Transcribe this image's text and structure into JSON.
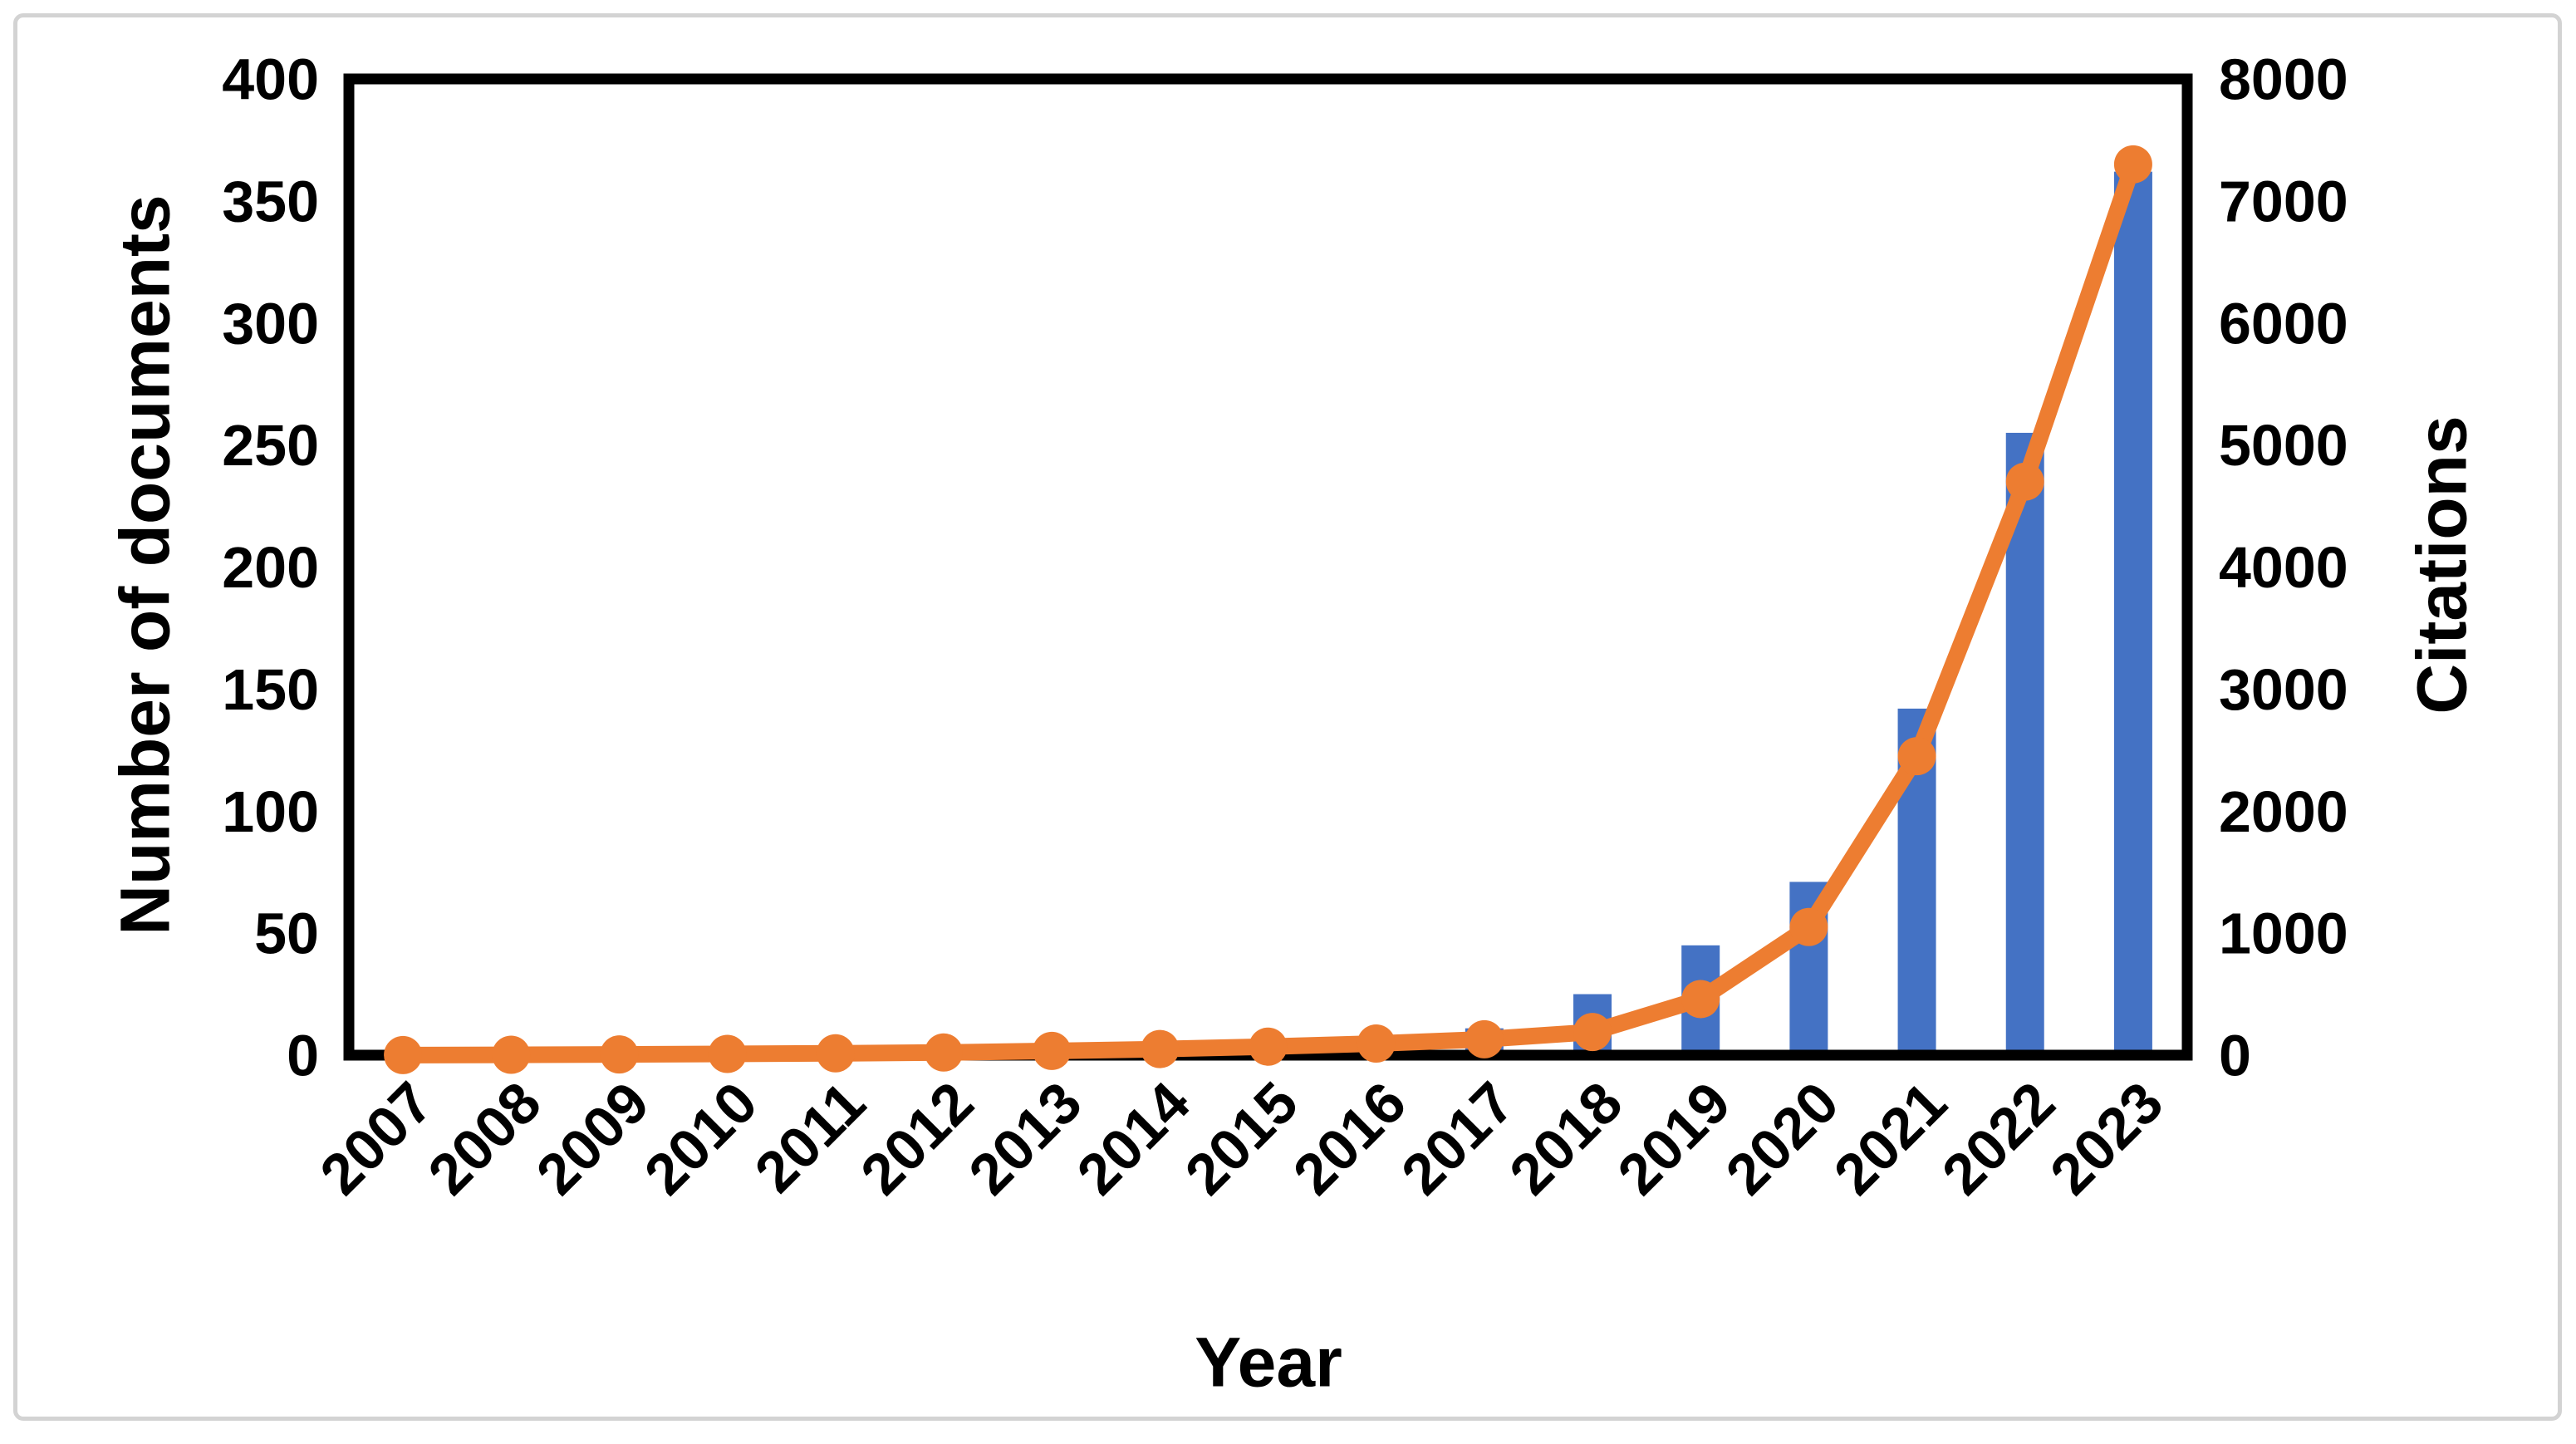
{
  "figure": {
    "background": "#ffffff",
    "frame_color": "#d3d3d3",
    "plot_border_color": "#000000"
  },
  "chart_data": {
    "type": "bar",
    "combo": true,
    "title": "",
    "xlabel": "Year",
    "ylabel_left": "Number of documents",
    "ylabel_right": "Citations",
    "categories": [
      "2007",
      "2008",
      "2009",
      "2010",
      "2011",
      "2012",
      "2013",
      "2014",
      "2015",
      "2016",
      "2017",
      "2018",
      "2019",
      "2020",
      "2021",
      "2022",
      "2023"
    ],
    "series": [
      {
        "name": "Number of documents",
        "type": "bar",
        "axis": "left",
        "color": "#4472C4",
        "values": [
          1,
          1,
          1,
          1,
          1,
          2,
          2,
          3,
          3,
          5,
          11,
          25,
          45,
          71,
          142,
          255,
          362
        ]
      },
      {
        "name": "Citations",
        "type": "line",
        "axis": "right",
        "color": "#ED7D31",
        "values": [
          1,
          3,
          6,
          10,
          15,
          22,
          35,
          50,
          70,
          95,
          130,
          190,
          460,
          1050,
          2450,
          4700,
          7300
        ]
      }
    ],
    "ylim_left": [
      0,
      400
    ],
    "yticks_left": [
      0,
      50,
      100,
      150,
      200,
      250,
      300,
      350,
      400
    ],
    "ylim_right": [
      0,
      8000
    ],
    "yticks_right": [
      0,
      1000,
      2000,
      3000,
      4000,
      5000,
      6000,
      7000,
      8000
    ],
    "grid": false,
    "legend": "none",
    "x_tick_rotation": -45
  }
}
